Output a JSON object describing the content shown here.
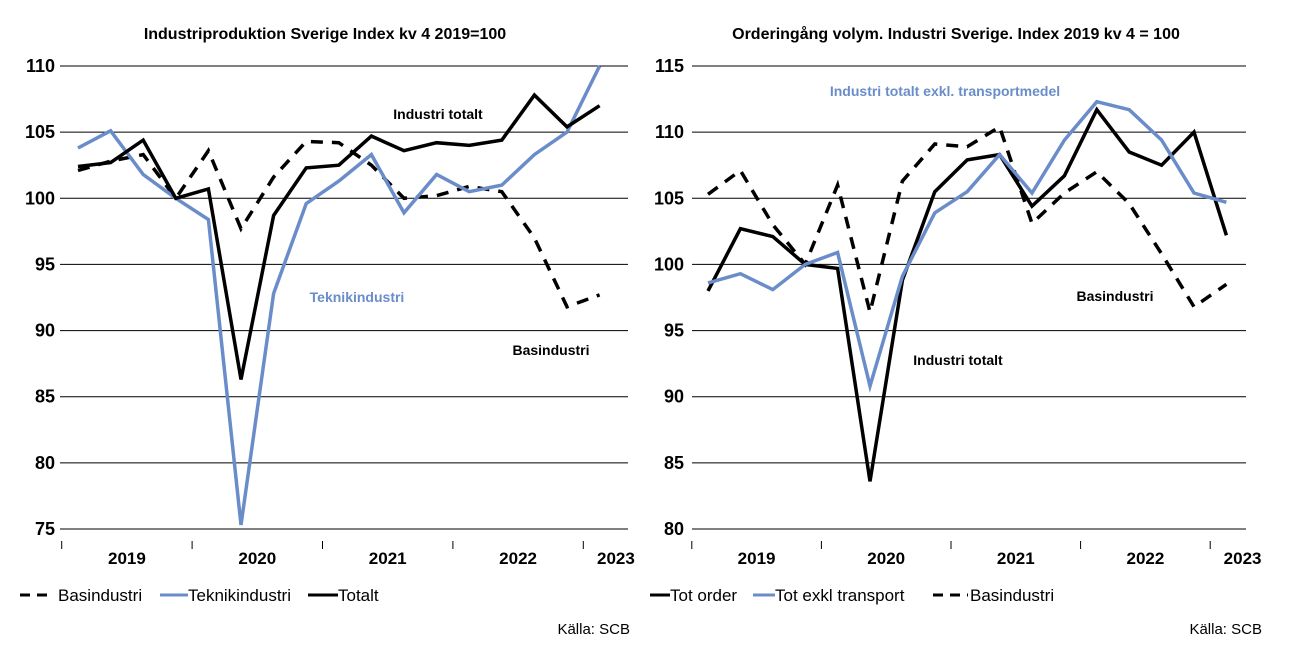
{
  "chart_data": [
    {
      "type": "line",
      "title": "Industriproduktion Sverige Index kv 4 2019=100",
      "ylim": [
        75,
        110
      ],
      "yticks": [
        75,
        80,
        85,
        90,
        95,
        100,
        105,
        110
      ],
      "grid": true,
      "legend_position": "bottom-left",
      "x_quarters": [
        "2019Q1",
        "2019Q2",
        "2019Q3",
        "2019Q4",
        "2020Q1",
        "2020Q2",
        "2020Q3",
        "2020Q4",
        "2021Q1",
        "2021Q2",
        "2021Q3",
        "2021Q4",
        "2022Q1",
        "2022Q2",
        "2022Q3",
        "2022Q4",
        "2023Q1",
        "2023Q2"
      ],
      "year_labels": [
        "2019",
        "2020",
        "2021",
        "2022",
        "2023"
      ],
      "series": [
        {
          "name": "Basindustri",
          "color": "#000000",
          "style": "dashed",
          "values": [
            102.1,
            102.8,
            103.3,
            100.0,
            103.6,
            97.7,
            101.6,
            104.3,
            104.2,
            102.5,
            100.0,
            100.2,
            100.9,
            100.5,
            97.0,
            91.8,
            92.7
          ]
        },
        {
          "name": "Teknikindustri",
          "color": "#6a8dca",
          "style": "solid",
          "values": [
            103.8,
            105.1,
            101.8,
            100.0,
            98.4,
            75.3,
            92.8,
            99.6,
            101.3,
            103.3,
            98.9,
            101.8,
            100.5,
            101.0,
            103.3,
            105.0,
            110.0
          ]
        },
        {
          "name": "Totalt",
          "color": "#000000",
          "style": "solid",
          "values": [
            102.4,
            102.7,
            104.4,
            100.0,
            100.7,
            86.3,
            98.7,
            102.3,
            102.5,
            104.7,
            103.6,
            104.2,
            104.0,
            104.4,
            107.8,
            105.4,
            107.0
          ]
        }
      ],
      "annotations": [
        {
          "text": "Industri totalt",
          "color": "#000000"
        },
        {
          "text": "Teknikindustri",
          "color": "#6a8dca"
        },
        {
          "text": "Basindustri",
          "color": "#000000"
        }
      ],
      "source": "Källa: SCB"
    },
    {
      "type": "line",
      "title": "Orderingång volym. Industri Sverige. Index 2019 kv 4 = 100",
      "ylim": [
        80,
        115
      ],
      "yticks": [
        80,
        85,
        90,
        95,
        100,
        105,
        110,
        115
      ],
      "grid": true,
      "legend_position": "bottom-left",
      "x_quarters": [
        "2019Q1",
        "2019Q2",
        "2019Q3",
        "2019Q4",
        "2020Q1",
        "2020Q2",
        "2020Q3",
        "2020Q4",
        "2021Q1",
        "2021Q2",
        "2021Q3",
        "2021Q4",
        "2022Q1",
        "2022Q2",
        "2022Q3",
        "2022Q4",
        "2023Q1",
        "2023Q2"
      ],
      "year_labels": [
        "2019",
        "2020",
        "2021",
        "2022",
        "2023"
      ],
      "series": [
        {
          "name": "Tot order",
          "color": "#000000",
          "style": "solid",
          "values": [
            98.0,
            102.7,
            102.1,
            100.0,
            99.7,
            83.6,
            98.8,
            105.5,
            107.9,
            108.3,
            104.4,
            106.7,
            111.7,
            108.5,
            107.5,
            110.0,
            102.2
          ]
        },
        {
          "name": "Tot exkl transport",
          "color": "#6a8dca",
          "style": "solid",
          "values": [
            98.6,
            99.3,
            98.1,
            100.0,
            100.9,
            90.8,
            99.1,
            103.9,
            105.5,
            108.3,
            105.4,
            109.4,
            112.3,
            111.7,
            109.4,
            105.4,
            104.7
          ]
        },
        {
          "name": "Basindustri",
          "color": "#000000",
          "style": "dashed",
          "values": [
            105.3,
            107.1,
            103.0,
            100.0,
            106.0,
            96.4,
            106.3,
            109.1,
            108.9,
            110.4,
            103.1,
            105.4,
            107.0,
            104.6,
            100.8,
            96.8,
            98.5
          ]
        }
      ],
      "annotations": [
        {
          "text": "Industri totalt exkl. transportmedel",
          "color": "#6a8dca"
        },
        {
          "text": "Basindustri",
          "color": "#000000"
        },
        {
          "text": "Industri totalt",
          "color": "#000000"
        }
      ],
      "source": "Källa: SCB"
    }
  ]
}
